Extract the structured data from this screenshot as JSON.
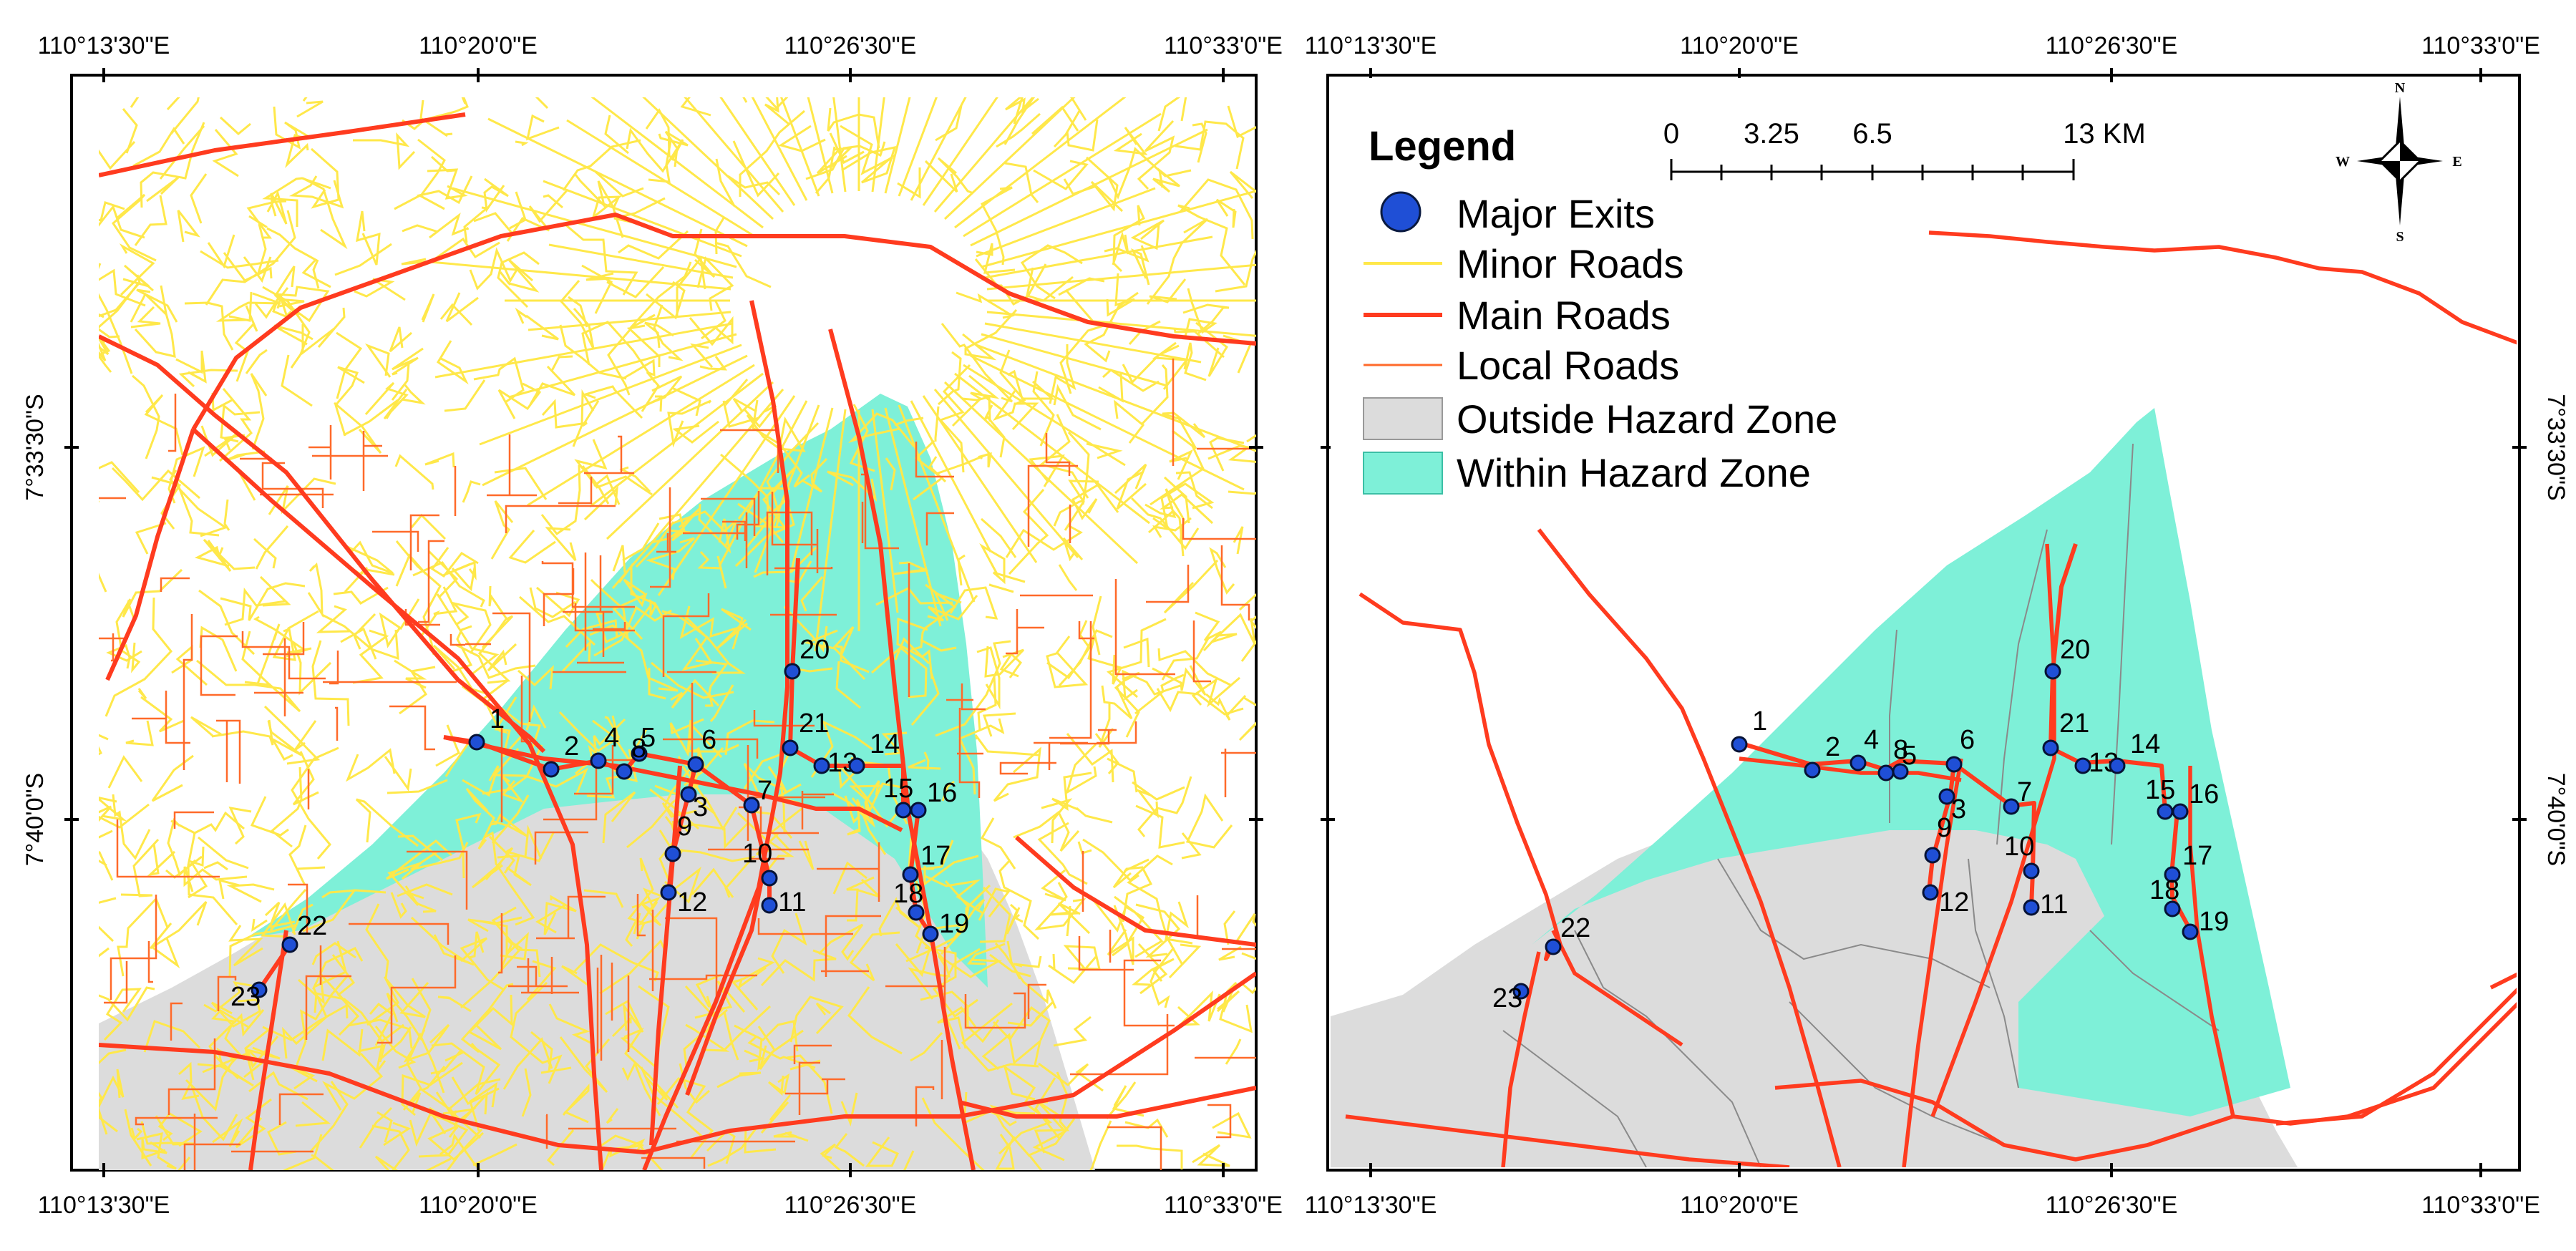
{
  "coordinates": {
    "lon_labels": [
      "110°13'30\"E",
      "110°20'0\"E",
      "110°26'30\"E",
      "110°33'0\"E"
    ],
    "lat_labels": [
      "7°33'30\"S",
      "7°40'0\"S"
    ]
  },
  "legend": {
    "title": "Legend",
    "items": [
      {
        "label": "Major Exits",
        "symbol": "circle",
        "color": "#1f4fd6"
      },
      {
        "label": "Minor Roads",
        "symbol": "line",
        "color": "#ffe84a"
      },
      {
        "label": "Main Roads",
        "symbol": "line",
        "color": "#ff3b1f"
      },
      {
        "label": "Local Roads",
        "symbol": "line",
        "color": "#ff6a2a"
      },
      {
        "label": "Outside Hazard Zone",
        "symbol": "box",
        "color": "#dcdcdc"
      },
      {
        "label": "Within Hazard Zone",
        "symbol": "box",
        "color": "#7ef0d8"
      }
    ]
  },
  "scale_bar": {
    "labels": [
      "0",
      "3.25",
      "6.5",
      "13 KM"
    ]
  },
  "north_arrow": {
    "n": "N",
    "s": "S",
    "e": "E",
    "w": "W"
  },
  "exits": {
    "labels": [
      "1",
      "2",
      "3",
      "4",
      "5",
      "6",
      "7",
      "8",
      "9",
      "10",
      "11",
      "12",
      "13",
      "14",
      "15",
      "16",
      "17",
      "18",
      "19",
      "20",
      "21",
      "22",
      "23"
    ]
  },
  "colors": {
    "minor_roads": "#ffe84a",
    "main_roads": "#ff3b1f",
    "local_roads": "#ff6a2a",
    "outside_zone": "#dcdcdc",
    "within_zone": "#7ef0d8",
    "exit_fill": "#1f4fd6"
  }
}
